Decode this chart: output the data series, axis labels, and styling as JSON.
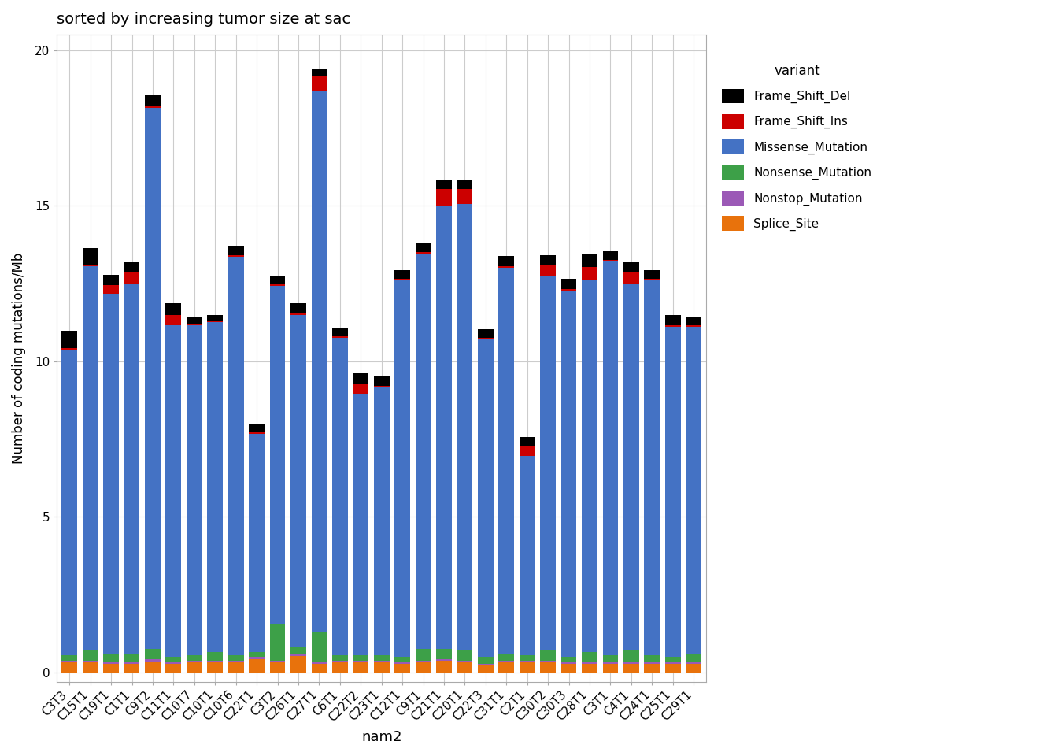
{
  "categories": [
    "C3T3",
    "C15T1",
    "C19T1",
    "C1T1",
    "C9T2",
    "C11T1",
    "C10T7",
    "C10T1",
    "C10T6",
    "C22T1",
    "C3T2",
    "C26T1",
    "C27T1",
    "C6T1",
    "C22T2",
    "C23T1",
    "C12T1",
    "C9T1",
    "C21T1",
    "C20T1",
    "C22T3",
    "C31T1",
    "C2T1",
    "C30T2",
    "C30T3",
    "C28T1",
    "C3T1",
    "C4T1",
    "C24T1",
    "C25T1",
    "C29T1"
  ],
  "variants": {
    "Splice_Site": [
      0.33,
      0.33,
      0.28,
      0.28,
      0.33,
      0.28,
      0.33,
      0.33,
      0.33,
      0.43,
      0.33,
      0.53,
      0.28,
      0.33,
      0.33,
      0.33,
      0.28,
      0.33,
      0.38,
      0.33,
      0.23,
      0.33,
      0.33,
      0.33,
      0.28,
      0.28,
      0.28,
      0.28,
      0.28,
      0.28,
      0.28
    ],
    "Nonstop_Mutation": [
      0.05,
      0.05,
      0.05,
      0.05,
      0.08,
      0.05,
      0.05,
      0.05,
      0.05,
      0.08,
      0.05,
      0.08,
      0.05,
      0.05,
      0.05,
      0.05,
      0.05,
      0.05,
      0.05,
      0.05,
      0.05,
      0.05,
      0.05,
      0.05,
      0.05,
      0.05,
      0.05,
      0.05,
      0.05,
      0.05,
      0.05
    ],
    "Nonsense_Mutation": [
      0.18,
      0.33,
      0.28,
      0.28,
      0.33,
      0.18,
      0.18,
      0.28,
      0.18,
      0.15,
      1.18,
      0.18,
      0.98,
      0.18,
      0.18,
      0.18,
      0.18,
      0.38,
      0.33,
      0.33,
      0.23,
      0.23,
      0.18,
      0.33,
      0.18,
      0.33,
      0.23,
      0.38,
      0.23,
      0.18,
      0.28
    ],
    "Missense_Mutation": [
      9.8,
      12.35,
      11.55,
      11.9,
      17.4,
      10.65,
      10.6,
      10.6,
      12.8,
      7.0,
      10.85,
      10.7,
      17.4,
      10.2,
      8.4,
      8.6,
      12.1,
      12.7,
      14.25,
      14.35,
      10.2,
      12.4,
      6.4,
      12.05,
      11.75,
      11.95,
      12.65,
      11.8,
      12.05,
      10.6,
      10.5
    ],
    "Frame_Shift_Ins": [
      0.05,
      0.05,
      0.28,
      0.33,
      0.05,
      0.33,
      0.05,
      0.05,
      0.05,
      0.05,
      0.05,
      0.05,
      0.48,
      0.05,
      0.33,
      0.05,
      0.05,
      0.05,
      0.53,
      0.48,
      0.05,
      0.05,
      0.33,
      0.33,
      0.05,
      0.43,
      0.05,
      0.33,
      0.05,
      0.05,
      0.05
    ],
    "Frame_Shift_Del": [
      0.58,
      0.53,
      0.33,
      0.33,
      0.38,
      0.38,
      0.23,
      0.18,
      0.28,
      0.28,
      0.28,
      0.33,
      0.23,
      0.28,
      0.33,
      0.33,
      0.28,
      0.28,
      0.28,
      0.28,
      0.28,
      0.33,
      0.28,
      0.33,
      0.33,
      0.43,
      0.28,
      0.33,
      0.28,
      0.33,
      0.28
    ]
  },
  "colors": {
    "Frame_Shift_Del": "#000000",
    "Frame_Shift_Ins": "#CC0000",
    "Missense_Mutation": "#4472C4",
    "Nonsense_Mutation": "#3DA048",
    "Nonstop_Mutation": "#9B59B6",
    "Splice_Site": "#E8720C"
  },
  "legend_order": [
    "Frame_Shift_Del",
    "Frame_Shift_Ins",
    "Missense_Mutation",
    "Nonsense_Mutation",
    "Nonstop_Mutation",
    "Splice_Site"
  ],
  "title": "sorted by increasing tumor size at sac",
  "xlabel": "nam2",
  "ylabel": "Number of coding mutations/Mb",
  "ylim": [
    -0.3,
    20.5
  ],
  "yticks": [
    0,
    5,
    10,
    15,
    20
  ],
  "background_color": "#FFFFFF",
  "grid_color": "#CCCCCC",
  "bar_width": 0.75
}
